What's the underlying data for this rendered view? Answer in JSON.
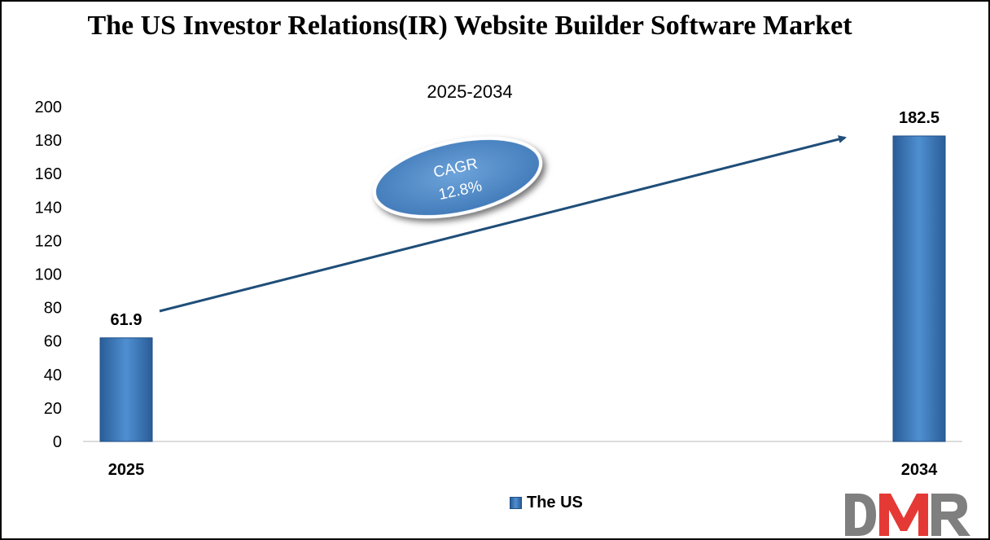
{
  "chart_data": {
    "type": "bar",
    "title": "The US Investor Relations(IR) Website Builder Software Market",
    "subtitle": "2025-2034",
    "categories": [
      "2025",
      "2034"
    ],
    "series": [
      {
        "name": "The US",
        "values": [
          61.9,
          182.5
        ],
        "data_labels": [
          "61.9",
          "182.5"
        ]
      }
    ],
    "ylim": [
      0,
      200
    ],
    "yticks": [
      0,
      20,
      40,
      60,
      80,
      100,
      120,
      140,
      160,
      180,
      200
    ],
    "ytick_labels": [
      "0",
      "20",
      "40",
      "60",
      "80",
      "100",
      "120",
      "140",
      "160",
      "180",
      "200"
    ],
    "grid": false,
    "legend": "bottom-center",
    "annotation": {
      "line1": "CAGR",
      "line2": "12.8%"
    },
    "colors": {
      "bar": "#3b7bc2",
      "arrow": "#1f4e79",
      "ellipse": "#5b93cf"
    }
  },
  "logo": {
    "text": "DMR",
    "colors": [
      "#7f7f7f",
      "#e53935",
      "#7f7f7f"
    ]
  }
}
